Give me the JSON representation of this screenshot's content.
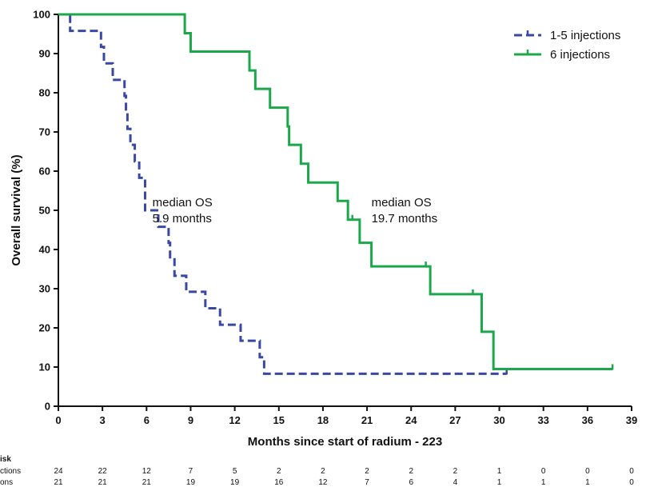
{
  "chart_data": {
    "type": "line",
    "chart_style": "kaplan-meier step curve",
    "ylabel": "Overall survival (%)",
    "xlabel": "Months since start of radium - 223",
    "xlim": [
      0,
      39
    ],
    "ylim": [
      0,
      100
    ],
    "x_ticks": [
      "0",
      "3",
      "6",
      "9",
      "12",
      "15",
      "18",
      "21",
      "24",
      "27",
      "30",
      "33",
      "36",
      "39"
    ],
    "y_ticks": [
      "0",
      "10",
      "20",
      "30",
      "40",
      "50",
      "60",
      "70",
      "80",
      "90",
      "100"
    ],
    "grid": false,
    "legend_position": "top-right",
    "series": [
      {
        "name": "1-5 injections",
        "color": "#3949A3",
        "style": "dashed",
        "steps": [
          [
            0,
            100
          ],
          [
            0.8,
            95.8
          ],
          [
            2.9,
            91.7
          ],
          [
            3.1,
            87.5
          ],
          [
            3.7,
            83.3
          ],
          [
            4.5,
            79.2
          ],
          [
            4.6,
            75.0
          ],
          [
            4.7,
            70.8
          ],
          [
            4.9,
            66.7
          ],
          [
            5.2,
            62.5
          ],
          [
            5.5,
            58.3
          ],
          [
            5.9,
            50.0
          ],
          [
            6.8,
            45.8
          ],
          [
            7.5,
            41.7
          ],
          [
            7.6,
            37.5
          ],
          [
            7.9,
            33.3
          ],
          [
            8.7,
            29.2
          ],
          [
            10.0,
            25.0
          ],
          [
            11.0,
            20.8
          ],
          [
            12.4,
            16.7
          ],
          [
            13.7,
            12.5
          ],
          [
            14.0,
            8.3
          ],
          [
            30.5,
            8.3
          ]
        ],
        "censored": [
          [
            0.8,
            98
          ],
          [
            30.5,
            8.3
          ]
        ]
      },
      {
        "name": "6 injections",
        "color": "#1CA84A",
        "style": "solid",
        "steps": [
          [
            0,
            100
          ],
          [
            8.6,
            95.2
          ],
          [
            9.0,
            90.5
          ],
          [
            13.0,
            85.7
          ],
          [
            13.4,
            81.0
          ],
          [
            14.4,
            76.2
          ],
          [
            15.6,
            71.4
          ],
          [
            15.7,
            66.7
          ],
          [
            16.5,
            61.9
          ],
          [
            17.0,
            57.1
          ],
          [
            19.0,
            52.4
          ],
          [
            19.7,
            47.6
          ],
          [
            20.5,
            41.7
          ],
          [
            21.3,
            35.7
          ],
          [
            25.3,
            28.6
          ],
          [
            28.8,
            19.0
          ],
          [
            29.6,
            9.5
          ],
          [
            37.7,
            9.5
          ]
        ],
        "censored": [
          [
            20.0,
            47.6
          ],
          [
            25.0,
            35.7
          ],
          [
            28.2,
            28.6
          ],
          [
            37.7,
            9.5
          ]
        ]
      }
    ],
    "annotations": [
      {
        "line1": "median OS",
        "line2": "5.9 months",
        "x": 6.4,
        "y": 52
      },
      {
        "line1": "median OS",
        "line2": "19.7 months",
        "x": 21.3,
        "y": 52
      }
    ],
    "risk_table": {
      "header": "isk",
      "rows": [
        {
          "label": "ctions",
          "values": [
            "24",
            "22",
            "12",
            "7",
            "5",
            "2",
            "2",
            "2",
            "2",
            "2",
            "1",
            "0",
            "0",
            "0"
          ]
        },
        {
          "label": "ons",
          "values": [
            "21",
            "21",
            "21",
            "19",
            "19",
            "16",
            "12",
            "7",
            "6",
            "4",
            "1",
            "1",
            "1",
            "0"
          ]
        }
      ]
    }
  }
}
